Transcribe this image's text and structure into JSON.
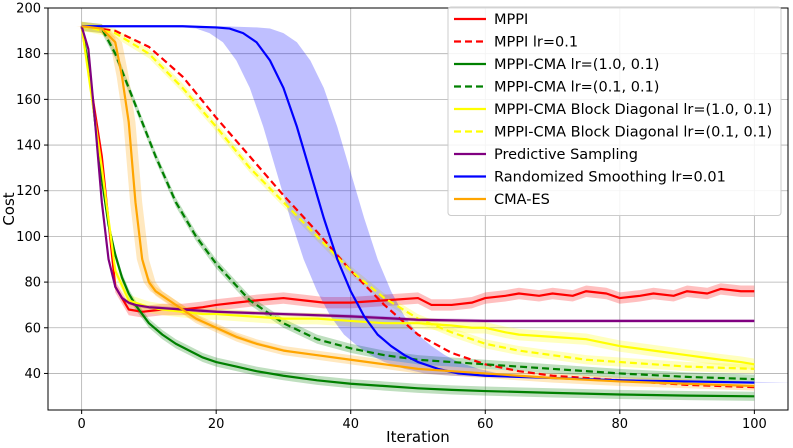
{
  "chart_data": {
    "type": "line",
    "title": "",
    "xlabel": "Iteration",
    "ylabel": "Cost",
    "xlim": [
      -5,
      105
    ],
    "ylim": [
      24,
      200
    ],
    "xticks": [
      0,
      20,
      40,
      60,
      80,
      100
    ],
    "yticks": [
      40,
      60,
      80,
      100,
      120,
      140,
      160,
      180,
      200
    ],
    "grid": true,
    "legend_position": "top-right",
    "series": [
      {
        "name": "MPPI",
        "color": "#ff0000",
        "dash": "solid",
        "x": [
          0,
          3,
          5,
          7,
          9,
          12,
          15,
          18,
          20,
          23,
          26,
          30,
          33,
          36,
          40,
          45,
          50,
          52,
          55,
          58,
          60,
          63,
          65,
          68,
          70,
          73,
          75,
          78,
          80,
          83,
          85,
          88,
          90,
          93,
          95,
          98,
          100
        ],
        "y": [
          192,
          135,
          78,
          68,
          67,
          68,
          68,
          69,
          70,
          71,
          72,
          73,
          72,
          71,
          71,
          72,
          73,
          70,
          70,
          71,
          73,
          74,
          75,
          74,
          75,
          74,
          76,
          75,
          73,
          74,
          75,
          74,
          76,
          75,
          77,
          76,
          76
        ],
        "band": 2.5
      },
      {
        "name": "MPPI lr=0.1",
        "color": "#ff0000",
        "dash": "dashed",
        "x": [
          0,
          5,
          10,
          15,
          20,
          25,
          30,
          35,
          40,
          45,
          50,
          55,
          60,
          65,
          70,
          75,
          80,
          85,
          90,
          95,
          100
        ],
        "y": [
          192,
          190,
          183,
          170,
          152,
          135,
          118,
          102,
          85,
          70,
          57,
          49,
          44,
          41,
          39,
          38,
          37,
          36,
          35,
          34.5,
          34
        ],
        "band": 0
      },
      {
        "name": "MPPI-CMA lr=(1.0, 0.1)",
        "color": "#008000",
        "dash": "solid",
        "x": [
          0,
          1,
          2,
          3,
          4,
          5,
          6,
          7,
          8,
          10,
          12,
          14,
          16,
          18,
          20,
          23,
          26,
          30,
          35,
          40,
          45,
          50,
          55,
          60,
          70,
          80,
          90,
          100
        ],
        "y": [
          192,
          175,
          150,
          125,
          105,
          92,
          82,
          75,
          70,
          62,
          57,
          53,
          50,
          47,
          45,
          43,
          41,
          39,
          37,
          35.5,
          34.5,
          33.5,
          32.8,
          32.3,
          31.5,
          30.8,
          30.3,
          30
        ],
        "band": 2
      },
      {
        "name": "MPPI-CMA lr=(0.1, 0.1)",
        "color": "#008000",
        "dash": "dashed",
        "x": [
          0,
          3,
          5,
          7,
          9,
          11,
          14,
          17,
          20,
          25,
          30,
          35,
          40,
          45,
          50,
          55,
          60,
          70,
          80,
          90,
          100
        ],
        "y": [
          192,
          191,
          180,
          165,
          150,
          135,
          115,
          100,
          88,
          72,
          62,
          55,
          51,
          48,
          46,
          45,
          44,
          42,
          40,
          38.5,
          37.5
        ],
        "band": 2
      },
      {
        "name": "MPPI-CMA Block Diagonal lr=(1.0, 0.1)",
        "color": "#ffff00",
        "dash": "solid",
        "x": [
          0,
          3,
          5,
          7,
          9,
          10,
          12,
          15,
          18,
          20,
          25,
          30,
          35,
          40,
          45,
          50,
          55,
          58,
          60,
          63,
          65,
          70,
          75,
          80,
          85,
          90,
          95,
          98,
          100
        ],
        "y": [
          192,
          130,
          85,
          72,
          70,
          69,
          68,
          67,
          66,
          66,
          65,
          64,
          64,
          63,
          62,
          62,
          61,
          60,
          60,
          58,
          57,
          56,
          55,
          52,
          50,
          48,
          46,
          45,
          44
        ],
        "band": 2.5
      },
      {
        "name": "MPPI-CMA Block Diagonal lr=(0.1, 0.1)",
        "color": "#ffff00",
        "dash": "dashed",
        "x": [
          0,
          5,
          10,
          15,
          20,
          25,
          30,
          35,
          40,
          45,
          50,
          55,
          60,
          65,
          70,
          75,
          80,
          85,
          90,
          95,
          100
        ],
        "y": [
          192,
          189,
          180,
          165,
          148,
          130,
          115,
          100,
          85,
          73,
          64,
          58,
          53,
          50,
          48,
          46,
          45,
          44,
          43,
          42.5,
          42
        ],
        "band": 2
      },
      {
        "name": "Predictive Sampling",
        "color": "#800080",
        "dash": "solid",
        "x": [
          0,
          1,
          2,
          3,
          4,
          5,
          6,
          7,
          8,
          10,
          15,
          20,
          30,
          40,
          50,
          60,
          70,
          80,
          90,
          100
        ],
        "y": [
          192,
          182,
          150,
          115,
          90,
          78,
          73,
          71,
          70,
          69,
          68,
          67,
          66,
          65,
          63.5,
          63,
          63,
          63,
          63,
          63
        ],
        "band": 0.8
      },
      {
        "name": "Randomized Smoothing lr=0.01",
        "color": "#0000ff",
        "dash": "solid",
        "x": [
          0,
          5,
          10,
          15,
          20,
          22,
          24,
          26,
          28,
          30,
          32,
          34,
          36,
          38,
          40,
          42,
          44,
          46,
          48,
          50,
          53,
          56,
          60,
          65,
          70,
          75,
          80,
          90,
          100
        ],
        "y": [
          192,
          192,
          192,
          192,
          191.5,
          191,
          189,
          185,
          177,
          165,
          148,
          128,
          108,
          90,
          76,
          65,
          57,
          52,
          48,
          45,
          42,
          40,
          39,
          38.5,
          38,
          37.5,
          37,
          36.5,
          36
        ],
        "band": 0
      },
      {
        "name": "CMA-ES",
        "color": "#ffa500",
        "dash": "solid",
        "x": [
          0,
          3,
          5,
          6,
          7,
          8,
          9,
          10,
          11,
          12,
          13,
          14,
          15,
          17,
          20,
          23,
          26,
          30,
          35,
          40,
          45,
          50,
          55,
          60,
          70,
          80,
          90,
          100
        ],
        "y": [
          192,
          191,
          185,
          170,
          150,
          115,
          90,
          80,
          76,
          74,
          72,
          70,
          68,
          64,
          60,
          56,
          53,
          50,
          48,
          46,
          44,
          42,
          41,
          40,
          38,
          36.5,
          35.5,
          34.5
        ],
        "band": 2
      }
    ]
  }
}
